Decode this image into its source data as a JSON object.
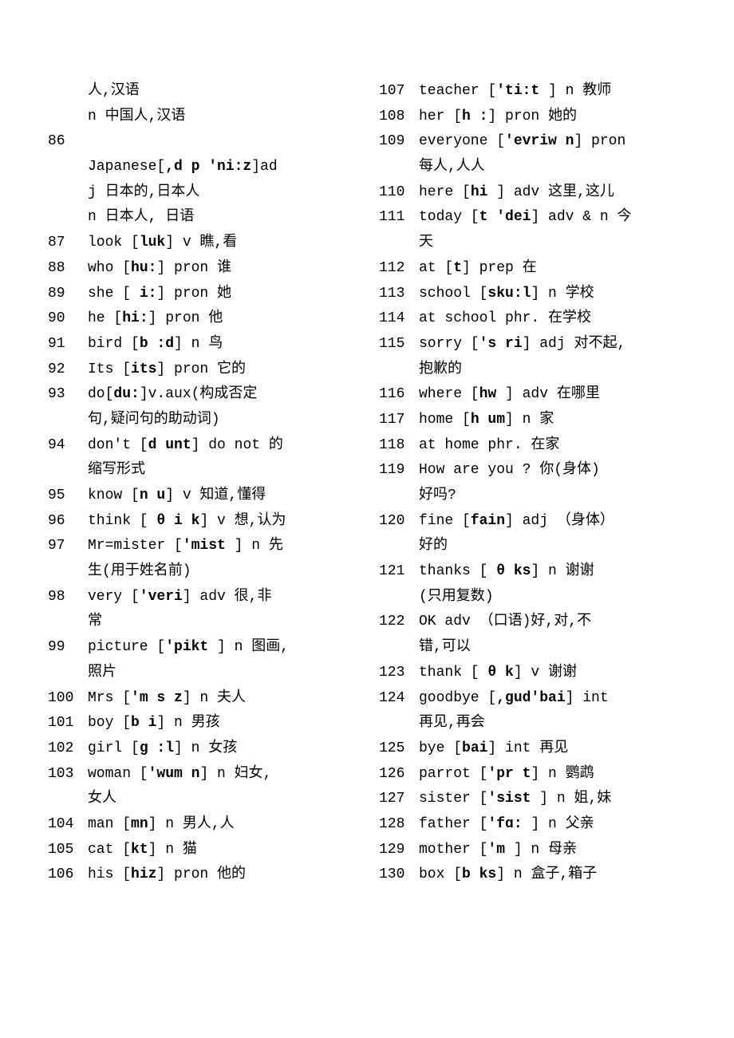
{
  "left": [
    {
      "num": "",
      "text": "人,汉语",
      "indent": true
    },
    {
      "num": "",
      "text": " n  中国人,汉语",
      "indent": true
    },
    {
      "num": "86",
      "text": ""
    },
    {
      "num": "",
      "text": "Japanese[<b>,d p  'ni:z</b>]ad",
      "indent": true
    },
    {
      "num": "",
      "text": "j 日本的,日本人",
      "indent": true
    },
    {
      "num": "",
      "text": "n 日本人, 日语",
      "indent": true
    },
    {
      "num": "87",
      "text": " look [<b>luk</b>] v  瞧,看"
    },
    {
      "num": "88",
      "text": " who [<b>hu:</b>] pron 谁"
    },
    {
      "num": "89",
      "text": " she [ <b>i:</b>] pron 她"
    },
    {
      "num": "90",
      "text": " he [<b>hi:</b>] pron 他"
    },
    {
      "num": "91",
      "text": " bird [<b>b :d</b>] n 鸟"
    },
    {
      "num": "92",
      "text": " Its [<b>its</b>] pron 它的"
    },
    {
      "num": "93",
      "text": "  do[<b>du:</b>]v.aux(构成否定"
    },
    {
      "num": "",
      "text": "句,疑问句的助动词)",
      "indent": true
    },
    {
      "num": "94",
      "text": " don't [<b>d unt</b>] do not 的"
    },
    {
      "num": "",
      "text": "缩写形式",
      "indent": true
    },
    {
      "num": "95",
      "text": " know [<b>n u</b>] v  知道,懂得"
    },
    {
      "num": "96",
      "text": " think [ <b>θ i k</b>] v  想,认为"
    },
    {
      "num": "97",
      "text": " Mr=mister [<b>'mist </b>] n 先"
    },
    {
      "num": "",
      "text": "生(用于姓名前)",
      "indent": true
    },
    {
      "num": "98",
      "text": " very [<b>'veri</b>] adv 很,非"
    },
    {
      "num": "",
      "text": "常",
      "indent": true
    },
    {
      "num": "99",
      "text": " picture [<b>'pikt </b>] n 图画,"
    },
    {
      "num": "",
      "text": "照片",
      "indent": true
    },
    {
      "num": "100",
      "text": " Mrs [<b>'m s z</b>] n 夫人"
    },
    {
      "num": "101",
      "text": " boy [<b>b i</b>] n 男孩"
    },
    {
      "num": "102",
      "text": " girl [<b>g :l</b>] n 女孩"
    },
    {
      "num": "103",
      "text": " woman [<b>'wum n</b>] n 妇女,"
    },
    {
      "num": "",
      "text": "女人",
      "indent": true
    },
    {
      "num": "104",
      "text": " man [<b>mn</b>]  n 男人,人"
    },
    {
      "num": "105",
      "text": " cat [<b>kt</b>]  n 猫"
    },
    {
      "num": "106",
      "text": " his [<b>hiz</b>] pron 他的"
    }
  ],
  "right": [
    {
      "num": "107",
      "text": " teacher [<b>'ti:t </b>] n 教师"
    },
    {
      "num": "108",
      "text": " her [<b>h :</b>] pron 她的"
    },
    {
      "num": "109",
      "text": " everyone [<b>'evriw n</b>] pron"
    },
    {
      "num": "",
      "text": "每人,人人",
      "indent": true
    },
    {
      "num": "110",
      "text": " here [<b>hi </b>] adv 这里,这儿"
    },
    {
      "num": "111",
      "text": " today [<b>t 'dei</b>] adv & n 今"
    },
    {
      "num": "",
      "text": "天",
      "indent": true
    },
    {
      "num": "112",
      "text": " at [<b>t</b>]  prep  在"
    },
    {
      "num": "113",
      "text": " school [<b>sku:l</b>] n 学校"
    },
    {
      "num": "114",
      "text": " at school   phr. 在学校"
    },
    {
      "num": "115",
      "text": " sorry [<b>'s ri</b>] adj 对不起,"
    },
    {
      "num": "",
      "text": "抱歉的",
      "indent": true
    },
    {
      "num": "116",
      "text": " where [<b>hw </b>] adv 在哪里"
    },
    {
      "num": "117",
      "text": " home [<b>h um</b>] n 家"
    },
    {
      "num": "118",
      "text": " at home   phr. 在家"
    },
    {
      "num": "119",
      "text": " How are you ?   你(身体)"
    },
    {
      "num": "",
      "text": "好吗?",
      "indent": true
    },
    {
      "num": "120",
      "text": " fine [<b>fain</b>] adj （身体）"
    },
    {
      "num": "",
      "text": "好的",
      "indent": true
    },
    {
      "num": "121",
      "text": " thanks [ <b>θ  ks</b>] n 谢谢"
    },
    {
      "num": "",
      "text": "(只用复数)",
      "indent": true
    },
    {
      "num": "122",
      "text": " OK   adv （口语)好,对,不"
    },
    {
      "num": "",
      "text": "错,可以",
      "indent": true
    },
    {
      "num": "123",
      "text": " thank [ <b>θ  k</b>] v  谢谢"
    },
    {
      "num": "124",
      "text": " goodbye [<b>,gud'bai</b>]  int"
    },
    {
      "num": "",
      "text": "再见,再会",
      "indent": true
    },
    {
      "num": "125",
      "text": " bye [<b>bai</b>] int 再见"
    },
    {
      "num": "126",
      "text": " parrot [<b>'pr  t</b>] n 鹦鹉"
    },
    {
      "num": "127",
      "text": " sister [<b>'sist </b>] n 姐,妹"
    },
    {
      "num": "128",
      "text": " father [<b>'fɑ:  </b>] n 父亲"
    },
    {
      "num": "129",
      "text": " mother [<b>'m   </b>] n 母亲"
    },
    {
      "num": "130",
      "text": " box [<b>b ks</b>] n 盒子,箱子"
    }
  ]
}
